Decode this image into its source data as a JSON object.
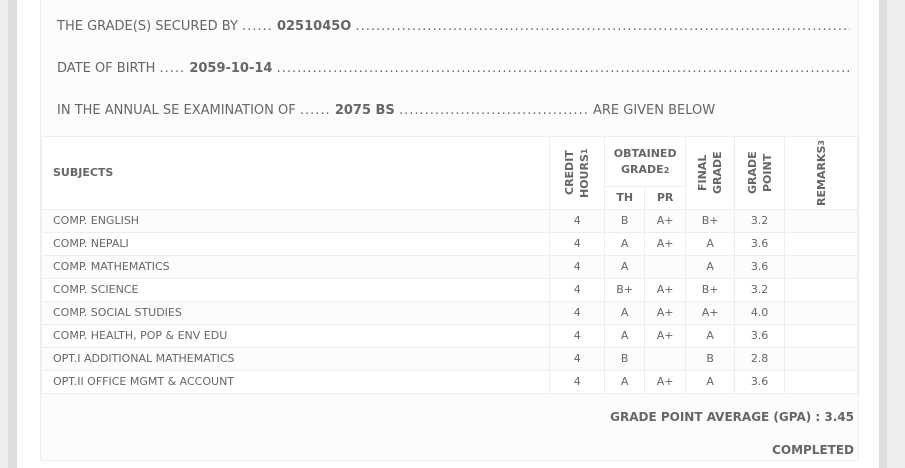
{
  "info": {
    "secured_label": "THE GRADE(S) SECURED BY",
    "student_id": "0251045O",
    "dob_label": "DATE OF BIRTH",
    "dob": "2059-10-14",
    "exam_label": "IN THE ANNUAL SE EXAMINATION OF",
    "exam_year": "2075 BS",
    "given_below": "ARE GIVEN BELOW"
  },
  "table": {
    "headers": {
      "subjects": "SUBJECTS",
      "credit": "CREDIT HOURS",
      "credit_sup": "1",
      "obtained": "OBTAINED GRADE",
      "obtained_sup": "2",
      "th": "TH",
      "pr": "PR",
      "final": "FINAL GRADE",
      "gp": "GRADE POINT",
      "remarks": "REMARKS",
      "remarks_sup": "3"
    },
    "rows": [
      {
        "subject": "COMP. ENGLISH",
        "credit": "4",
        "th": "B",
        "pr": "A+",
        "final": "B+",
        "gp": "3.2",
        "remarks": ""
      },
      {
        "subject": "COMP. NEPALI",
        "credit": "4",
        "th": "A",
        "pr": "A+",
        "final": "A",
        "gp": "3.6",
        "remarks": ""
      },
      {
        "subject": "COMP. MATHEMATICS",
        "credit": "4",
        "th": "A",
        "pr": "",
        "final": "A",
        "gp": "3.6",
        "remarks": ""
      },
      {
        "subject": "COMP. SCIENCE",
        "credit": "4",
        "th": "B+",
        "pr": "A+",
        "final": "B+",
        "gp": "3.2",
        "remarks": ""
      },
      {
        "subject": "COMP. SOCIAL STUDIES",
        "credit": "4",
        "th": "A",
        "pr": "A+",
        "final": "A+",
        "gp": "4.0",
        "remarks": ""
      },
      {
        "subject": "COMP. HEALTH, POP & ENV EDU",
        "credit": "4",
        "th": "A",
        "pr": "A+",
        "final": "A",
        "gp": "3.6",
        "remarks": ""
      },
      {
        "subject": "OPT.I ADDITIONAL MATHEMATICS",
        "credit": "4",
        "th": "B",
        "pr": "",
        "final": "B",
        "gp": "2.8",
        "remarks": ""
      },
      {
        "subject": "OPT.II OFFICE MGMT & ACCOUNT",
        "credit": "4",
        "th": "A",
        "pr": "A+",
        "final": "A",
        "gp": "3.6",
        "remarks": ""
      }
    ]
  },
  "summary": {
    "gpa_label": "GRADE POINT AVERAGE (GPA) :",
    "gpa": "3.45",
    "status": "COMPLETED"
  }
}
